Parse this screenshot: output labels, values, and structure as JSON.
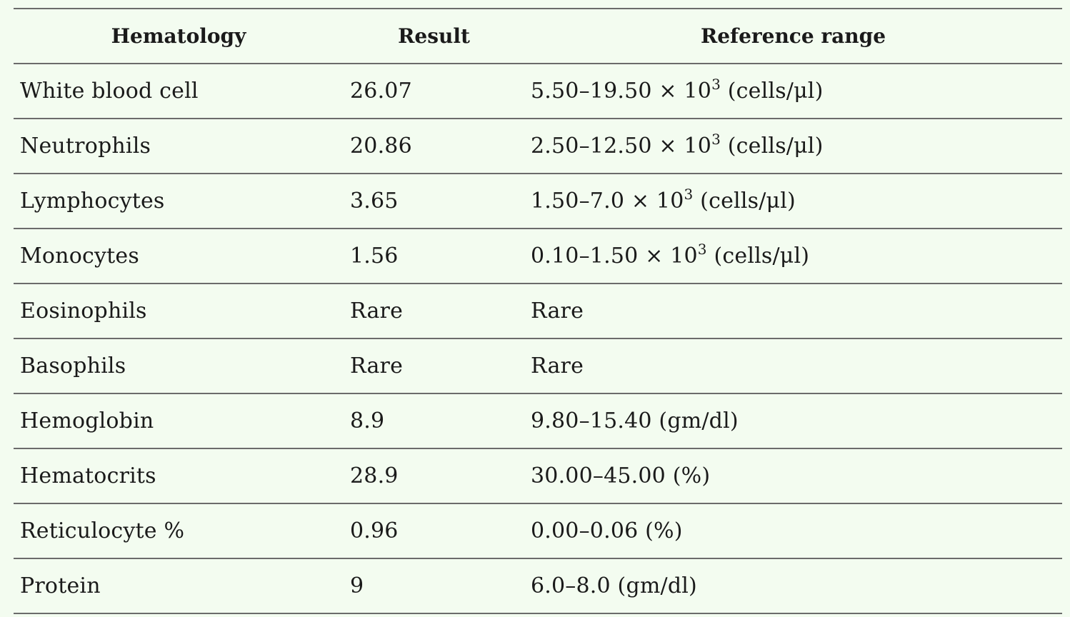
{
  "table": {
    "headers": [
      "Hematology",
      "Result",
      "Reference range"
    ],
    "rows": [
      {
        "name": "White blood cell",
        "result": "26.07",
        "ref": "5.50–19.50 × 10",
        "exp": "3",
        "unit": " (cells/μl)"
      },
      {
        "name": "Neutrophils",
        "result": "20.86",
        "ref": "2.50–12.50 × 10",
        "exp": "3",
        "unit": " (cells/μl)"
      },
      {
        "name": "Lymphocytes",
        "result": "3.65",
        "ref": "1.50–7.0 × 10",
        "exp": "3",
        "unit": " (cells/μl)"
      },
      {
        "name": "Monocytes",
        "result": "1.56",
        "ref": "0.10–1.50 × 10",
        "exp": "3",
        "unit": " (cells/μl)"
      },
      {
        "name": "Eosinophils",
        "result": "Rare",
        "ref": "Rare",
        "exp": "",
        "unit": ""
      },
      {
        "name": "Basophils",
        "result": "Rare",
        "ref": "Rare",
        "exp": "",
        "unit": ""
      },
      {
        "name": "Hemoglobin",
        "result": "8.9",
        "ref": "9.80–15.40 (gm/dl)",
        "exp": "",
        "unit": ""
      },
      {
        "name": "Hematocrits",
        "result": "28.9",
        "ref": "30.00–45.00 (%)",
        "exp": "",
        "unit": ""
      },
      {
        "name": "Reticulocyte %",
        "result": "0.96",
        "ref": "0.00–0.06 (%)",
        "exp": "",
        "unit": ""
      },
      {
        "name": "Protein",
        "result": "9",
        "ref": "6.0–8.0 (gm/dl)",
        "exp": "",
        "unit": ""
      }
    ]
  }
}
